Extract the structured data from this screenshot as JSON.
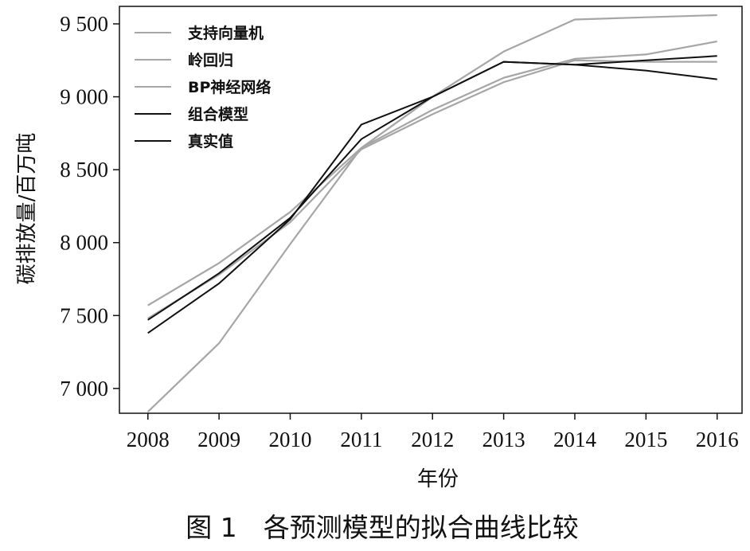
{
  "chart_data": {
    "type": "line",
    "xlabel": "年份",
    "ylabel": "碳排放量/百万吨",
    "caption": "图 1　各预测模型的拟合曲线比较",
    "x": [
      "2008",
      "2009",
      "2010",
      "2011",
      "2012",
      "2013",
      "2014",
      "2015",
      "2016"
    ],
    "y_ticks": [
      "7 000",
      "7 500",
      "8 000",
      "8 500",
      "9 000",
      "9 500"
    ],
    "y_tick_values": [
      7000,
      7500,
      8000,
      8500,
      9000,
      9500
    ],
    "ylim": [
      6830,
      9620
    ],
    "xlim": [
      2007.6,
      2016.35
    ],
    "legend_position": "top-left",
    "grid": false,
    "series": [
      {
        "name": "支持向量机",
        "color": "#a6a6a6",
        "values": [
          6840,
          7310,
          7990,
          8650,
          9000,
          9310,
          9530,
          9545,
          9560
        ]
      },
      {
        "name": "岭回归",
        "color": "#a6a6a6",
        "values": [
          7570,
          7860,
          8210,
          8650,
          8910,
          9130,
          9260,
          9290,
          9380
        ]
      },
      {
        "name": "BP神经网络",
        "color": "#a6a6a6",
        "values": [
          7480,
          7780,
          8140,
          8640,
          8880,
          9100,
          9250,
          9240,
          9240
        ]
      },
      {
        "name": "组合模型",
        "color": "#111111",
        "values": [
          7470,
          7790,
          8170,
          8710,
          9000,
          9240,
          9220,
          9250,
          9280
        ]
      },
      {
        "name": "真实值",
        "color": "#111111",
        "values": [
          7380,
          7720,
          8160,
          8810,
          9000,
          9240,
          9220,
          9180,
          9120
        ]
      }
    ]
  }
}
